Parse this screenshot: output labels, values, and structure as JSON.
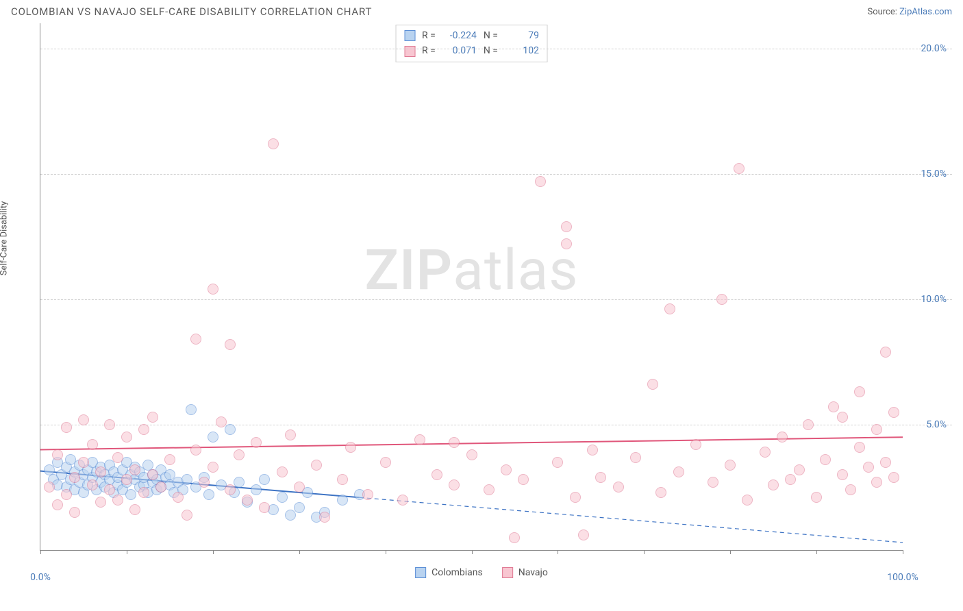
{
  "title": "COLOMBIAN VS NAVAJO SELF-CARE DISABILITY CORRELATION CHART",
  "source_prefix": "Source: ",
  "source_link": "ZipAtlas.com",
  "y_axis_label": "Self-Care Disability",
  "watermark_bold": "ZIP",
  "watermark_rest": "atlas",
  "chart": {
    "type": "scatter",
    "xlim": [
      0,
      100
    ],
    "ylim": [
      0,
      21
    ],
    "x_ticks": [
      0,
      10,
      20,
      30,
      40,
      50,
      60,
      70,
      80,
      90,
      100
    ],
    "x_tick_labels": {
      "0": "0.0%",
      "100": "100.0%"
    },
    "y_ticks": [
      5,
      10,
      15,
      20
    ],
    "y_tick_labels": [
      "5.0%",
      "10.0%",
      "15.0%",
      "20.0%"
    ],
    "grid_color": "#d0d0d0",
    "background_color": "#ffffff",
    "point_radius": 8,
    "series": [
      {
        "name": "Colombians",
        "fill": "#b9d3f0",
        "stroke": "#5c8fd6",
        "fill_opacity": 0.55,
        "stats": {
          "R": "-0.224",
          "N": "79"
        },
        "trend": {
          "y0": 3.15,
          "y100": 0.3,
          "solid_until_x": 37,
          "color": "#3d73c4",
          "width": 2
        },
        "points": [
          [
            1,
            3.2
          ],
          [
            1.5,
            2.8
          ],
          [
            2,
            3.5
          ],
          [
            2,
            2.6
          ],
          [
            2.5,
            3.0
          ],
          [
            3,
            3.3
          ],
          [
            3,
            2.5
          ],
          [
            3.5,
            3.6
          ],
          [
            3.5,
            2.8
          ],
          [
            4,
            3.1
          ],
          [
            4,
            2.4
          ],
          [
            4.5,
            3.4
          ],
          [
            4.5,
            2.7
          ],
          [
            5,
            3.0
          ],
          [
            5,
            2.3
          ],
          [
            5.5,
            3.2
          ],
          [
            5.5,
            2.6
          ],
          [
            6,
            3.5
          ],
          [
            6,
            2.9
          ],
          [
            6.5,
            2.4
          ],
          [
            6.5,
            3.1
          ],
          [
            7,
            2.7
          ],
          [
            7,
            3.3
          ],
          [
            7.5,
            2.5
          ],
          [
            7.5,
            3.0
          ],
          [
            8,
            2.8
          ],
          [
            8,
            3.4
          ],
          [
            8.5,
            2.3
          ],
          [
            8.5,
            3.1
          ],
          [
            9,
            2.6
          ],
          [
            9,
            2.9
          ],
          [
            9.5,
            3.2
          ],
          [
            9.5,
            2.4
          ],
          [
            10,
            3.5
          ],
          [
            10,
            2.7
          ],
          [
            10.5,
            3.0
          ],
          [
            10.5,
            2.2
          ],
          [
            11,
            2.8
          ],
          [
            11,
            3.3
          ],
          [
            11.5,
            2.5
          ],
          [
            11.5,
            3.1
          ],
          [
            12,
            2.6
          ],
          [
            12,
            2.9
          ],
          [
            12.5,
            3.4
          ],
          [
            12.5,
            2.3
          ],
          [
            13,
            2.7
          ],
          [
            13,
            3.0
          ],
          [
            13.5,
            2.4
          ],
          [
            13.5,
            2.8
          ],
          [
            14,
            3.2
          ],
          [
            14,
            2.5
          ],
          [
            14.5,
            2.9
          ],
          [
            15,
            2.6
          ],
          [
            15,
            3.0
          ],
          [
            15.5,
            2.3
          ],
          [
            16,
            2.7
          ],
          [
            16.5,
            2.4
          ],
          [
            17,
            2.8
          ],
          [
            17.5,
            5.6
          ],
          [
            18,
            2.5
          ],
          [
            19,
            2.9
          ],
          [
            19.5,
            2.2
          ],
          [
            20,
            4.5
          ],
          [
            21,
            2.6
          ],
          [
            22,
            4.8
          ],
          [
            22.5,
            2.3
          ],
          [
            23,
            2.7
          ],
          [
            24,
            1.9
          ],
          [
            25,
            2.4
          ],
          [
            26,
            2.8
          ],
          [
            27,
            1.6
          ],
          [
            28,
            2.1
          ],
          [
            29,
            1.4
          ],
          [
            30,
            1.7
          ],
          [
            31,
            2.3
          ],
          [
            32,
            1.3
          ],
          [
            33,
            1.5
          ],
          [
            35,
            2.0
          ],
          [
            37,
            2.2
          ]
        ]
      },
      {
        "name": "Navajo",
        "fill": "#f8c6d1",
        "stroke": "#e07a94",
        "fill_opacity": 0.55,
        "stats": {
          "R": "0.071",
          "N": "102"
        },
        "trend": {
          "y0": 4.0,
          "y100": 4.5,
          "solid_until_x": 100,
          "color": "#e0567a",
          "width": 2
        },
        "points": [
          [
            1,
            2.5
          ],
          [
            2,
            3.8
          ],
          [
            2,
            1.8
          ],
          [
            3,
            4.9
          ],
          [
            3,
            2.2
          ],
          [
            4,
            2.9
          ],
          [
            4,
            1.5
          ],
          [
            5,
            3.5
          ],
          [
            5,
            5.2
          ],
          [
            6,
            2.6
          ],
          [
            6,
            4.2
          ],
          [
            7,
            3.1
          ],
          [
            7,
            1.9
          ],
          [
            8,
            2.4
          ],
          [
            8,
            5.0
          ],
          [
            9,
            3.7
          ],
          [
            9,
            2.0
          ],
          [
            10,
            4.5
          ],
          [
            10,
            2.8
          ],
          [
            11,
            3.2
          ],
          [
            11,
            1.6
          ],
          [
            12,
            2.3
          ],
          [
            12,
            4.8
          ],
          [
            13,
            3.0
          ],
          [
            13,
            5.3
          ],
          [
            14,
            2.5
          ],
          [
            15,
            3.6
          ],
          [
            16,
            2.1
          ],
          [
            17,
            1.4
          ],
          [
            18,
            4.0
          ],
          [
            18,
            8.4
          ],
          [
            19,
            2.7
          ],
          [
            20,
            10.4
          ],
          [
            20,
            3.3
          ],
          [
            21,
            5.1
          ],
          [
            22,
            2.4
          ],
          [
            22,
            8.2
          ],
          [
            23,
            3.8
          ],
          [
            24,
            2.0
          ],
          [
            25,
            4.3
          ],
          [
            26,
            1.7
          ],
          [
            27,
            16.2
          ],
          [
            28,
            3.1
          ],
          [
            29,
            4.6
          ],
          [
            30,
            2.5
          ],
          [
            32,
            3.4
          ],
          [
            33,
            1.3
          ],
          [
            35,
            2.8
          ],
          [
            36,
            4.1
          ],
          [
            38,
            2.2
          ],
          [
            40,
            3.5
          ],
          [
            42,
            2.0
          ],
          [
            44,
            4.4
          ],
          [
            46,
            3.0
          ],
          [
            48,
            2.6
          ],
          [
            48,
            4.3
          ],
          [
            50,
            3.8
          ],
          [
            52,
            2.4
          ],
          [
            54,
            3.2
          ],
          [
            55,
            0.5
          ],
          [
            56,
            2.8
          ],
          [
            58,
            14.7
          ],
          [
            60,
            3.5
          ],
          [
            61,
            12.9
          ],
          [
            61,
            12.2
          ],
          [
            62,
            2.1
          ],
          [
            63,
            0.6
          ],
          [
            64,
            4.0
          ],
          [
            65,
            2.9
          ],
          [
            67,
            2.5
          ],
          [
            69,
            3.7
          ],
          [
            71,
            6.6
          ],
          [
            72,
            2.3
          ],
          [
            73,
            9.6
          ],
          [
            74,
            3.1
          ],
          [
            76,
            4.2
          ],
          [
            78,
            2.7
          ],
          [
            79,
            10.0
          ],
          [
            80,
            3.4
          ],
          [
            81,
            15.2
          ],
          [
            82,
            2.0
          ],
          [
            84,
            3.9
          ],
          [
            85,
            2.6
          ],
          [
            86,
            4.5
          ],
          [
            87,
            2.8
          ],
          [
            88,
            3.2
          ],
          [
            89,
            5.0
          ],
          [
            90,
            2.1
          ],
          [
            91,
            3.6
          ],
          [
            92,
            5.7
          ],
          [
            93,
            3.0
          ],
          [
            93,
            5.3
          ],
          [
            94,
            2.4
          ],
          [
            95,
            4.1
          ],
          [
            95,
            6.3
          ],
          [
            96,
            3.3
          ],
          [
            97,
            2.7
          ],
          [
            97,
            4.8
          ],
          [
            98,
            3.5
          ],
          [
            98,
            7.9
          ],
          [
            99,
            2.9
          ],
          [
            99,
            5.5
          ]
        ]
      }
    ]
  },
  "legend_labels": {
    "r": "R =",
    "n": "N ="
  }
}
